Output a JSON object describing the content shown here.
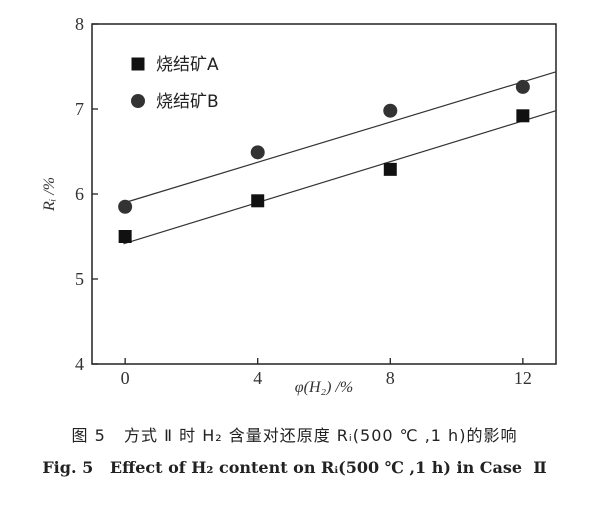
{
  "chart_data": {
    "type": "scatter",
    "xlabel": "φ(H₂) /%",
    "ylabel": "Rᵢ /%",
    "xlim": [
      -1,
      13
    ],
    "ylim": [
      4,
      8
    ],
    "xticks": [
      "0",
      "4",
      "8",
      "12"
    ],
    "yticks": [
      "4",
      "5",
      "6",
      "7",
      "8"
    ],
    "legend_position": "top-left",
    "series": [
      {
        "name": "烧结矿A",
        "marker": "square",
        "color": "#111111",
        "x": [
          0,
          4,
          8,
          12
        ],
        "y": [
          5.5,
          5.92,
          6.29,
          6.92
        ],
        "fit": {
          "slope": 0.12,
          "intercept": 5.42
        }
      },
      {
        "name": "烧结矿B",
        "marker": "circle",
        "color": "#333333",
        "x": [
          0,
          4,
          8,
          12
        ],
        "y": [
          5.85,
          6.49,
          6.98,
          7.26
        ],
        "fit": {
          "slope": 0.1183,
          "intercept": 5.9
        }
      }
    ]
  },
  "caption": {
    "cn": "图 5   方式 Ⅱ 时 H₂ 含量对还原度 Rᵢ(500 ℃ ,1 h)的影响",
    "en": "Fig. 5   Effect of H₂ content on Rᵢ(500 ℃ ,1 h) in Case  Ⅱ"
  }
}
